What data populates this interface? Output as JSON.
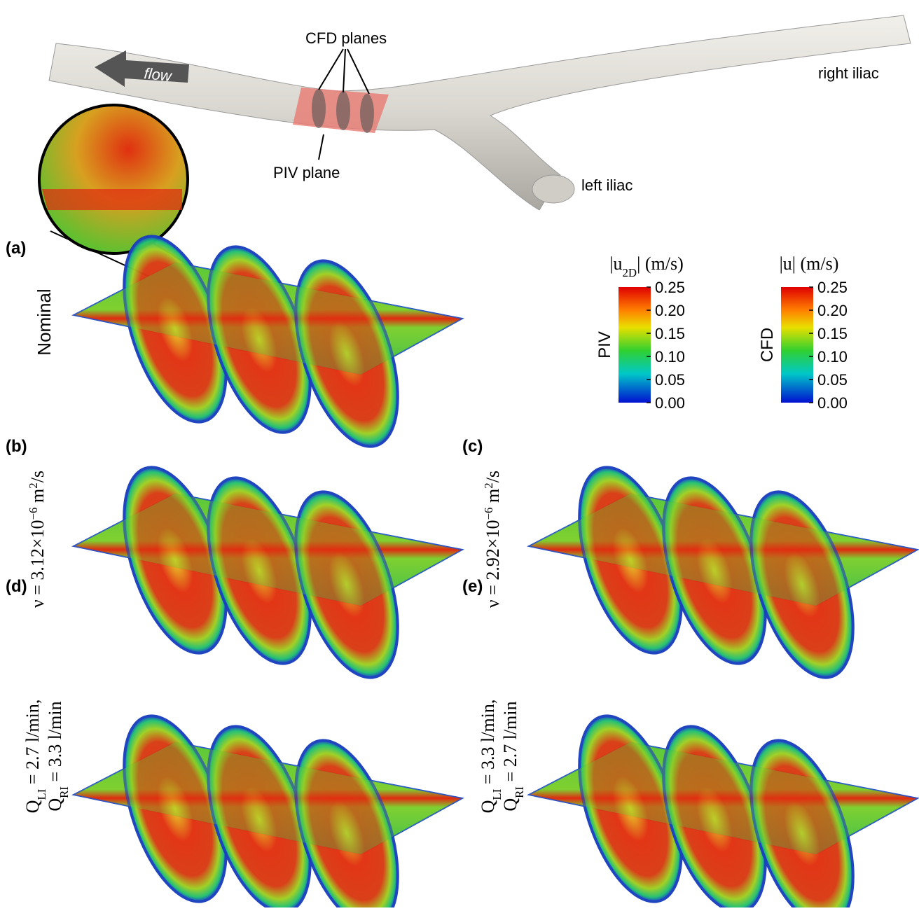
{
  "vessel": {
    "annotations": {
      "cfd_planes": "CFD planes",
      "flow": "flow",
      "piv_plane": "PIV plane",
      "right_iliac": "right iliac",
      "left_iliac": "left iliac"
    }
  },
  "panels": [
    {
      "label": "(a)",
      "condition": [
        [
          {
            "text": "Nominal"
          }
        ]
      ]
    },
    {
      "label": "(b)",
      "condition": [
        [
          {
            "text": "ν = 3.12×10"
          },
          {
            "text": "−6",
            "sup": true
          },
          {
            "text": " m"
          },
          {
            "text": "2",
            "sup": true
          },
          {
            "text": "/s"
          }
        ]
      ]
    },
    {
      "label": "(c)",
      "condition": [
        [
          {
            "text": "ν = 2.92×10"
          },
          {
            "text": "−6",
            "sup": true
          },
          {
            "text": " m"
          },
          {
            "text": "2",
            "sup": true
          },
          {
            "text": "/s"
          }
        ]
      ]
    },
    {
      "label": "(d)",
      "condition": [
        [
          {
            "text": "Q"
          },
          {
            "text": "LI",
            "sub": true
          },
          {
            "text": " = 2.7 l/min,"
          }
        ],
        [
          {
            "text": "Q"
          },
          {
            "text": "RI",
            "sub": true
          },
          {
            "text": " = 3.3 l/min"
          }
        ]
      ]
    },
    {
      "label": "(e)",
      "condition": [
        [
          {
            "text": "Q"
          },
          {
            "text": "LI",
            "sub": true
          },
          {
            "text": " = 3.3 l/min,"
          }
        ],
        [
          {
            "text": "Q"
          },
          {
            "text": "RI",
            "sub": true
          },
          {
            "text": " = 2.7 l/min"
          }
        ]
      ]
    }
  ],
  "colorbars": [
    {
      "title": [
        {
          "text": "|u"
        },
        {
          "text": "2D",
          "sub": true
        },
        {
          "text": "| (m/s)"
        }
      ],
      "label": "PIV",
      "ticks": [
        "0.25",
        "0.20",
        "0.15",
        "0.10",
        "0.05",
        "0.00"
      ]
    },
    {
      "title": [
        {
          "text": "|u| (m/s)"
        }
      ],
      "label": "CFD",
      "ticks": [
        "0.25",
        "0.20",
        "0.15",
        "0.10",
        "0.05",
        "0.00"
      ]
    }
  ]
}
